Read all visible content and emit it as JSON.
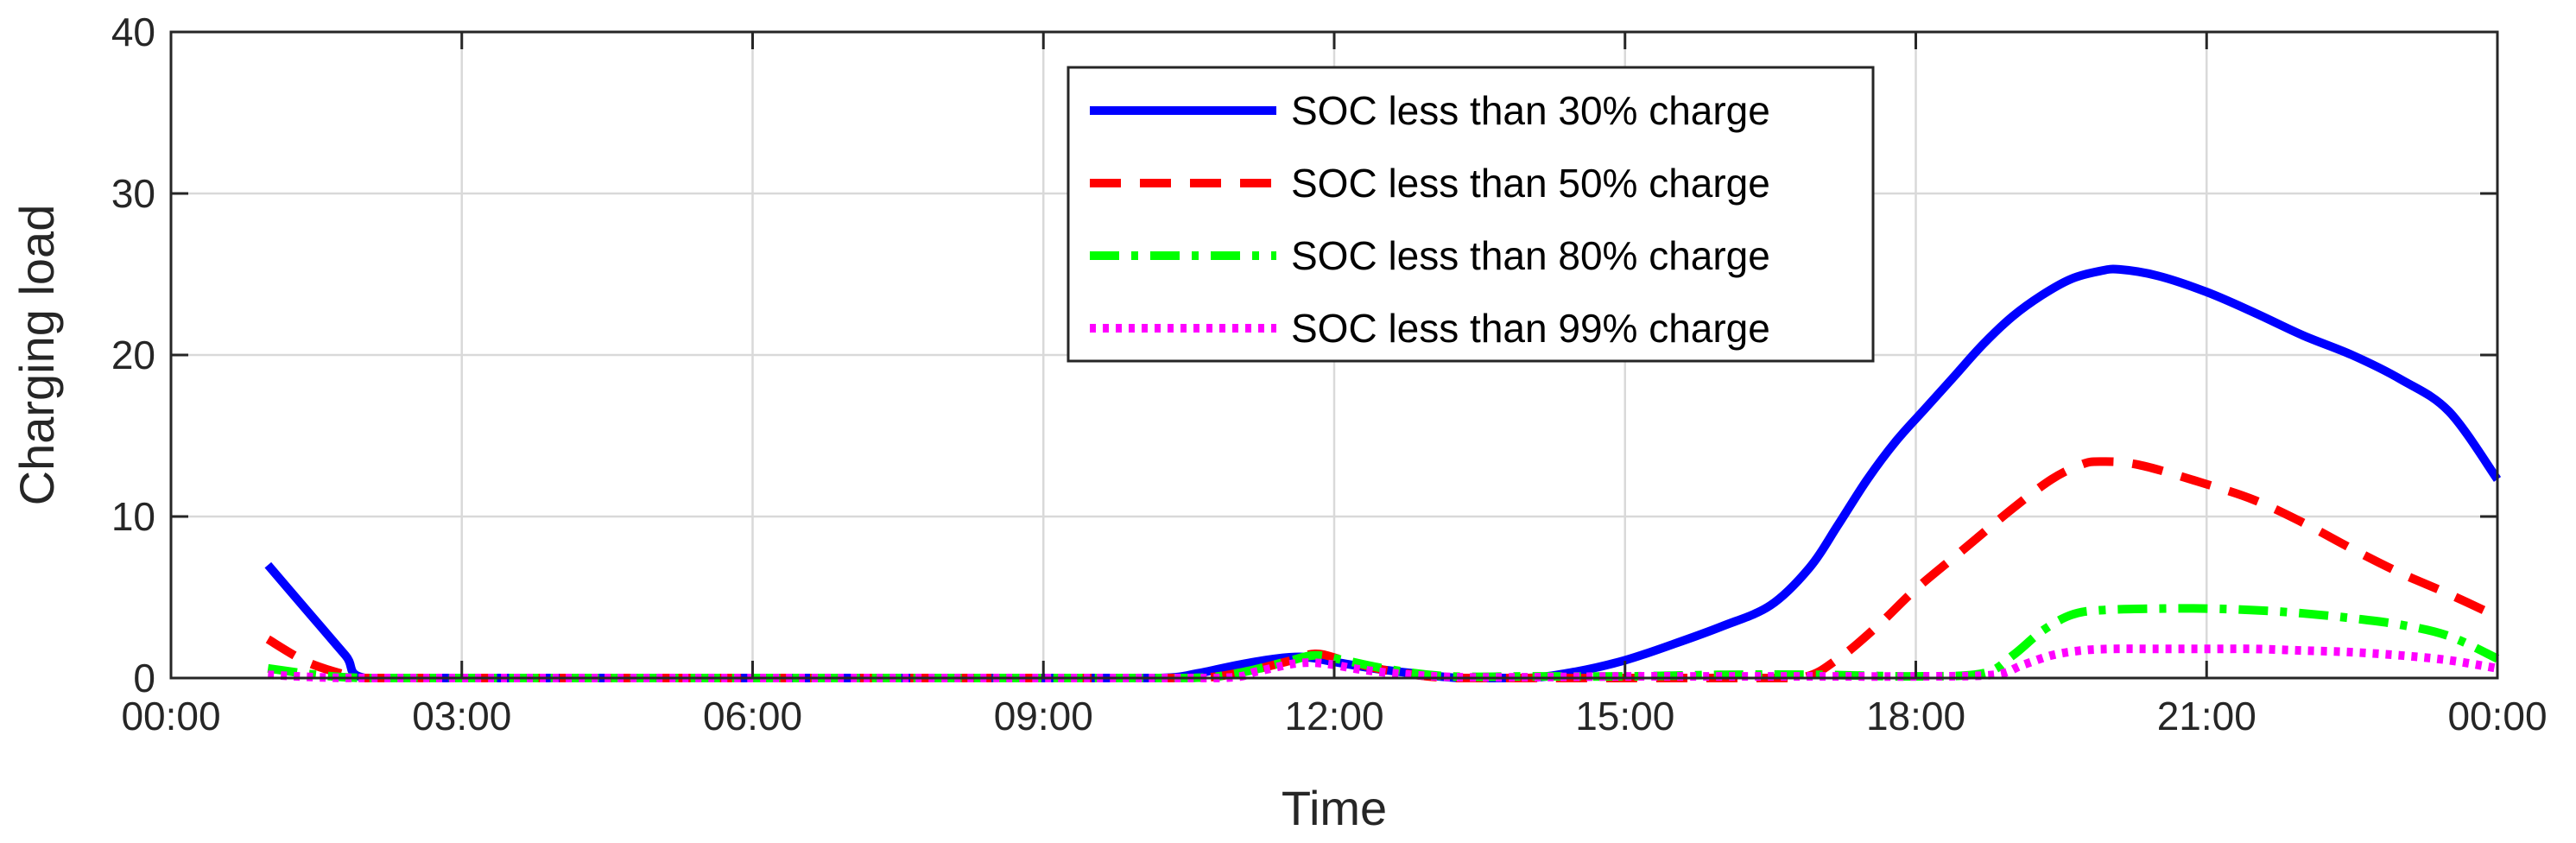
{
  "chart_data": {
    "type": "line",
    "xlabel": "Time",
    "ylabel": "Charging load",
    "xlim": [
      0,
      24
    ],
    "ylim": [
      0,
      40
    ],
    "x_ticks": [
      0,
      3,
      6,
      9,
      12,
      15,
      18,
      21,
      24
    ],
    "x_tick_labels": [
      "00:00",
      "03:00",
      "06:00",
      "09:00",
      "12:00",
      "15:00",
      "18:00",
      "21:00",
      "00:00"
    ],
    "y_ticks": [
      0,
      10,
      20,
      30,
      40
    ],
    "y_tick_labels": [
      "0",
      "10",
      "20",
      "30",
      "40"
    ],
    "grid": true,
    "legend_position": "top-center",
    "series": [
      {
        "name": "SOC less than 30% charge",
        "color": "#0000ff",
        "style": "solid",
        "points": [
          [
            1,
            7.0
          ],
          [
            1.4,
            4.2
          ],
          [
            1.8,
            1.4
          ],
          [
            2.0,
            0
          ],
          [
            3,
            0
          ],
          [
            6,
            0
          ],
          [
            9,
            0
          ],
          [
            10.2,
            0
          ],
          [
            10.6,
            0.3
          ],
          [
            11.0,
            0.8
          ],
          [
            11.4,
            1.2
          ],
          [
            11.7,
            1.3
          ],
          [
            12.0,
            1.0
          ],
          [
            12.4,
            0.6
          ],
          [
            12.8,
            0.3
          ],
          [
            13.3,
            0
          ],
          [
            14.0,
            0
          ],
          [
            14.5,
            0.4
          ],
          [
            15.0,
            1.1
          ],
          [
            15.5,
            2.1
          ],
          [
            16.0,
            3.2
          ],
          [
            16.5,
            4.5
          ],
          [
            16.9,
            6.8
          ],
          [
            17.2,
            9.5
          ],
          [
            17.5,
            12.3
          ],
          [
            17.8,
            14.7
          ],
          [
            18.1,
            16.7
          ],
          [
            18.4,
            18.7
          ],
          [
            18.7,
            20.7
          ],
          [
            19.0,
            22.4
          ],
          [
            19.3,
            23.7
          ],
          [
            19.6,
            24.7
          ],
          [
            19.9,
            25.2
          ],
          [
            20.1,
            25.3
          ],
          [
            20.5,
            24.9
          ],
          [
            21.0,
            23.9
          ],
          [
            21.5,
            22.6
          ],
          [
            22.0,
            21.2
          ],
          [
            22.5,
            20.0
          ],
          [
            23.0,
            18.5
          ],
          [
            23.5,
            16.5
          ],
          [
            24.0,
            12.3
          ]
        ]
      },
      {
        "name": "SOC less than 50% charge",
        "color": "#ff0000",
        "style": "dashed",
        "points": [
          [
            1,
            2.4
          ],
          [
            1.4,
            1.0
          ],
          [
            1.8,
            0.2
          ],
          [
            2.0,
            0
          ],
          [
            3,
            0
          ],
          [
            6,
            0
          ],
          [
            9,
            0
          ],
          [
            10.5,
            0
          ],
          [
            11.0,
            0.3
          ],
          [
            11.5,
            1.0
          ],
          [
            11.8,
            1.5
          ],
          [
            12.1,
            1.1
          ],
          [
            12.6,
            0.4
          ],
          [
            13.2,
            0
          ],
          [
            14,
            0
          ],
          [
            15,
            0
          ],
          [
            16,
            0
          ],
          [
            16.8,
            0
          ],
          [
            17.2,
            1.2
          ],
          [
            17.6,
            3.2
          ],
          [
            18.0,
            5.5
          ],
          [
            18.5,
            8.0
          ],
          [
            19.0,
            10.5
          ],
          [
            19.4,
            12.3
          ],
          [
            19.7,
            13.2
          ],
          [
            19.9,
            13.4
          ],
          [
            20.3,
            13.2
          ],
          [
            21.0,
            12.0
          ],
          [
            21.5,
            11.0
          ],
          [
            22.0,
            9.6
          ],
          [
            22.5,
            8.0
          ],
          [
            23.0,
            6.5
          ],
          [
            23.5,
            5.2
          ],
          [
            24.0,
            3.8
          ]
        ]
      },
      {
        "name": "SOC less than 80% charge",
        "color": "#00ff00",
        "style": "dashdot",
        "points": [
          [
            1,
            0.6
          ],
          [
            1.5,
            0.2
          ],
          [
            2.0,
            0
          ],
          [
            3,
            0
          ],
          [
            6,
            0
          ],
          [
            9,
            0
          ],
          [
            10.5,
            0
          ],
          [
            11.0,
            0.3
          ],
          [
            11.5,
            1.0
          ],
          [
            11.8,
            1.4
          ],
          [
            12.1,
            1.1
          ],
          [
            12.6,
            0.5
          ],
          [
            13.2,
            0.1
          ],
          [
            14,
            0.1
          ],
          [
            15,
            0.1
          ],
          [
            16,
            0.2
          ],
          [
            17,
            0.2
          ],
          [
            18,
            0.1
          ],
          [
            18.7,
            0.3
          ],
          [
            19.0,
            1.4
          ],
          [
            19.3,
            2.9
          ],
          [
            19.6,
            3.9
          ],
          [
            19.9,
            4.2
          ],
          [
            20.5,
            4.3
          ],
          [
            21.0,
            4.3
          ],
          [
            21.5,
            4.2
          ],
          [
            22.0,
            4.0
          ],
          [
            22.5,
            3.7
          ],
          [
            23.0,
            3.3
          ],
          [
            23.5,
            2.6
          ],
          [
            24.0,
            1.2
          ]
        ]
      },
      {
        "name": "SOC less than 99% charge",
        "color": "#ff00ff",
        "style": "dotted",
        "points": [
          [
            1,
            0.2
          ],
          [
            1.5,
            0.05
          ],
          [
            2.0,
            0
          ],
          [
            3,
            0
          ],
          [
            6,
            0
          ],
          [
            9,
            0
          ],
          [
            10.8,
            0
          ],
          [
            11.2,
            0.4
          ],
          [
            11.6,
            0.9
          ],
          [
            11.9,
            0.9
          ],
          [
            12.3,
            0.5
          ],
          [
            12.8,
            0.2
          ],
          [
            13.3,
            0.05
          ],
          [
            14,
            0.05
          ],
          [
            15,
            0.1
          ],
          [
            16,
            0.1
          ],
          [
            17,
            0.1
          ],
          [
            18,
            0.1
          ],
          [
            18.8,
            0.2
          ],
          [
            19.1,
            0.8
          ],
          [
            19.4,
            1.4
          ],
          [
            19.7,
            1.7
          ],
          [
            20.0,
            1.8
          ],
          [
            20.5,
            1.8
          ],
          [
            21.0,
            1.8
          ],
          [
            21.5,
            1.8
          ],
          [
            22.0,
            1.7
          ],
          [
            22.5,
            1.6
          ],
          [
            23.0,
            1.4
          ],
          [
            23.5,
            1.1
          ],
          [
            24.0,
            0.6
          ]
        ]
      }
    ]
  }
}
